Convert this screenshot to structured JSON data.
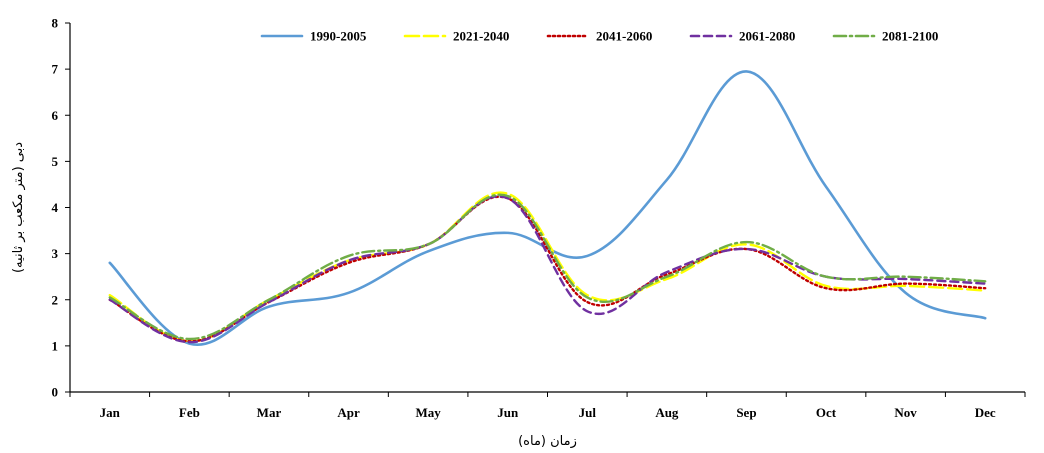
{
  "chart_data": {
    "type": "line",
    "title": "",
    "xlabel": "زمان (ماه)",
    "ylabel": "دبی (متر مکعب بر ثانیه)",
    "categories": [
      "Jan",
      "Feb",
      "Mar",
      "Apr",
      "May",
      "Jun",
      "Jul",
      "Aug",
      "Sep",
      "Oct",
      "Nov",
      "Dec"
    ],
    "ylim": [
      0,
      8
    ],
    "yticks": [
      0,
      1,
      2,
      3,
      4,
      5,
      6,
      7,
      8
    ],
    "grid": false,
    "legend_position": "top",
    "series": [
      {
        "name": "1990-2005",
        "color": "#5B9BD5",
        "dash": "solid",
        "values": [
          2.8,
          1.05,
          1.85,
          2.15,
          3.05,
          3.45,
          2.95,
          4.6,
          6.95,
          4.45,
          2.15,
          1.6
        ]
      },
      {
        "name": "2021-2040",
        "color": "#FFFF00",
        "dash": "longdash",
        "values": [
          2.1,
          1.1,
          2.0,
          2.85,
          3.2,
          4.3,
          2.1,
          2.45,
          3.2,
          2.3,
          2.3,
          2.2
        ]
      },
      {
        "name": "2041-2060",
        "color": "#C00000",
        "dash": "dotted",
        "values": [
          2.0,
          1.1,
          1.95,
          2.8,
          3.2,
          4.2,
          1.95,
          2.55,
          3.1,
          2.25,
          2.35,
          2.25
        ]
      },
      {
        "name": "2061-2080",
        "color": "#7030A0",
        "dash": "dash",
        "values": [
          2.0,
          1.08,
          1.95,
          2.85,
          3.2,
          4.2,
          1.75,
          2.6,
          3.1,
          2.5,
          2.45,
          2.35
        ]
      },
      {
        "name": "2081-2100",
        "color": "#70AD47",
        "dash": "dashdot",
        "values": [
          2.05,
          1.15,
          2.0,
          2.95,
          3.2,
          4.25,
          2.05,
          2.5,
          3.25,
          2.5,
          2.5,
          2.4
        ]
      }
    ]
  }
}
